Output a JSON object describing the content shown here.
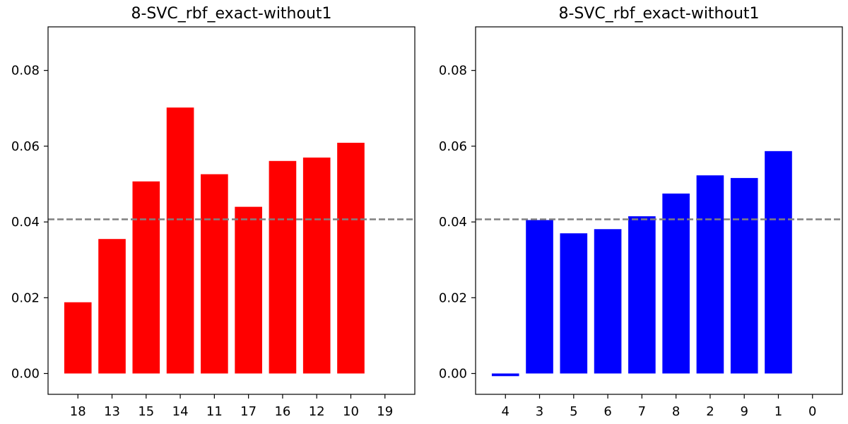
{
  "chart_data": [
    {
      "type": "bar",
      "title": "8-SVC_rbf_exact-without1",
      "categories": [
        "18",
        "13",
        "15",
        "14",
        "11",
        "17",
        "16",
        "12",
        "10",
        "19"
      ],
      "values": [
        0.0188,
        0.0355,
        0.0507,
        0.0702,
        0.0526,
        0.044,
        0.0561,
        0.057,
        0.0609,
        0.0
      ],
      "bar_color": "#ff0000",
      "reference_line": 0.0407,
      "reference_line_color": "#808080",
      "ylim": [
        -0.0055,
        0.0915
      ],
      "yticks": [
        "0.00",
        "0.02",
        "0.04",
        "0.06",
        "0.08"
      ],
      "ytick_values": [
        0,
        0.02,
        0.04,
        0.06,
        0.08
      ],
      "xlabel": "",
      "ylabel": "",
      "grid": false
    },
    {
      "type": "bar",
      "title": "8-SVC_rbf_exact-without1",
      "categories": [
        "4",
        "3",
        "5",
        "6",
        "7",
        "8",
        "2",
        "9",
        "1",
        "0"
      ],
      "values": [
        -0.0007,
        0.0405,
        0.037,
        0.0381,
        0.0415,
        0.0475,
        0.0523,
        0.0516,
        0.0587,
        0.0
      ],
      "bar_color": "#0000ff",
      "reference_line": 0.0407,
      "reference_line_color": "#808080",
      "ylim": [
        -0.0055,
        0.0915
      ],
      "yticks": [
        "0.00",
        "0.02",
        "0.04",
        "0.06",
        "0.08"
      ],
      "ytick_values": [
        0,
        0.02,
        0.04,
        0.06,
        0.08
      ],
      "xlabel": "",
      "ylabel": "",
      "grid": false
    }
  ]
}
